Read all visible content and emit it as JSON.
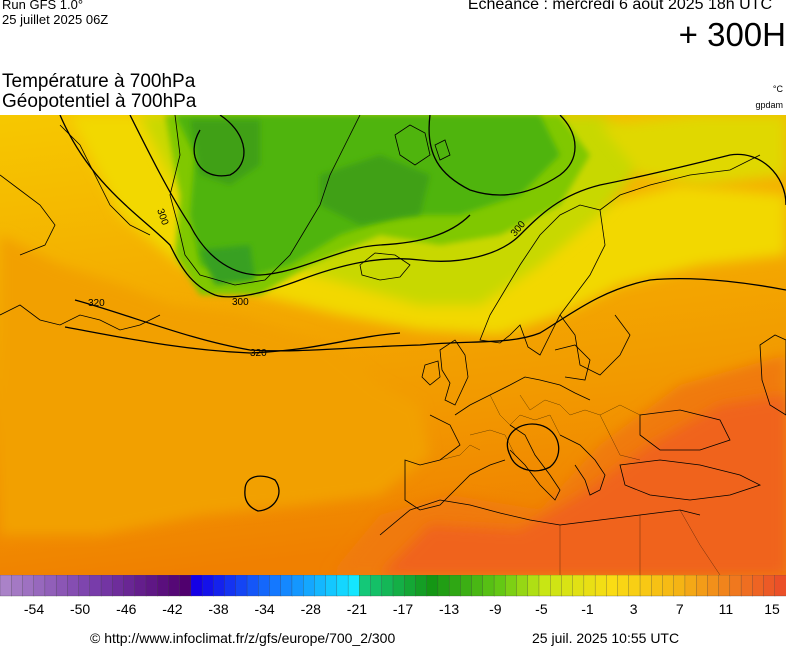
{
  "header": {
    "run_line1": "Run GFS 1.0°",
    "run_line2": "25 juillet 2025 06Z",
    "echeance": "Echéance : mercredi 6 aout 2025 18h UTC",
    "forecast_hour": "+ 300H"
  },
  "titles": {
    "line1": "Température à 700hPa",
    "line2": "Géopotentiel à 700hPa",
    "unit1": "°C",
    "unit2": "gpdam"
  },
  "map": {
    "contour_labels": [
      "300",
      "300",
      "300",
      "320",
      "320"
    ]
  },
  "colorbar": {
    "tick_labels": [
      "-54",
      "-50",
      "-46",
      "-42",
      "-38",
      "-34",
      "-28",
      "-21",
      "-17",
      "-13",
      "-9",
      "-5",
      "-1",
      "3",
      "7",
      "11",
      "15"
    ]
  },
  "footer": {
    "url_text": "© http://www.infoclimat.fr/z/gfs/europe/700_2/300",
    "generated": "25 juil. 2025 10:55 UTC"
  },
  "colors": {
    "cold_green": "#3aa010",
    "yellow": "#f0e000",
    "orange": "#f0a000",
    "hot": "#f05a10"
  }
}
